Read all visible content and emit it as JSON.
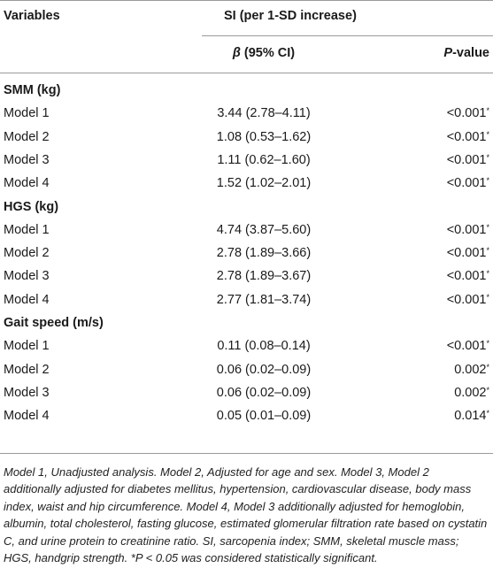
{
  "header": {
    "variables": "Variables",
    "si_group": "SI (per 1-SD increase)",
    "beta_symbol": "β",
    "beta_rest": " (95% CI)",
    "p_italic": "P",
    "p_rest": "-value"
  },
  "sections": [
    {
      "title": "SMM (kg)",
      "rows": [
        {
          "model": "Model 1",
          "beta": "3.44 (2.78–4.11)",
          "p": "<0.001",
          "sig": "*"
        },
        {
          "model": "Model 2",
          "beta": "1.08 (0.53–1.62)",
          "p": "<0.001",
          "sig": "*"
        },
        {
          "model": "Model 3",
          "beta": "1.11 (0.62–1.60)",
          "p": "<0.001",
          "sig": "*"
        },
        {
          "model": "Model 4",
          "beta": "1.52 (1.02–2.01)",
          "p": "<0.001",
          "sig": "*"
        }
      ]
    },
    {
      "title": "HGS (kg)",
      "rows": [
        {
          "model": "Model 1",
          "beta": "4.74 (3.87–5.60)",
          "p": "<0.001",
          "sig": "*"
        },
        {
          "model": "Model 2",
          "beta": "2.78 (1.89–3.66)",
          "p": "<0.001",
          "sig": "*"
        },
        {
          "model": "Model 3",
          "beta": "2.78 (1.89–3.67)",
          "p": "<0.001",
          "sig": "*"
        },
        {
          "model": "Model 4",
          "beta": "2.77 (1.81–3.74)",
          "p": "<0.001",
          "sig": "*"
        }
      ]
    },
    {
      "title": "Gait speed (m/s)",
      "rows": [
        {
          "model": "Model 1",
          "beta": "0.11 (0.08–0.14)",
          "p": "<0.001",
          "sig": "*"
        },
        {
          "model": "Model 2",
          "beta": "0.06 (0.02–0.09)",
          "p": "0.002",
          "sig": "*"
        },
        {
          "model": "Model 3",
          "beta": "0.06 (0.02–0.09)",
          "p": "0.002",
          "sig": "*"
        },
        {
          "model": "Model 4",
          "beta": "0.05 (0.01–0.09)",
          "p": "0.014",
          "sig": "*"
        }
      ]
    }
  ],
  "footnote": "Model 1, Unadjusted analysis. Model 2, Adjusted for age and sex. Model 3, Model 2 additionally adjusted for diabetes mellitus, hypertension, cardiovascular disease, body mass index, waist and hip circumference. Model 4, Model 3 additionally adjusted for hemoglobin, albumin, total cholesterol, fasting glucose, estimated glomerular filtration rate based on cystatin C, and urine protein to creatinine ratio. SI, sarcopenia index; SMM, skeletal muscle mass; HGS, handgrip strength. *P < 0.05 was considered statistically significant."
}
